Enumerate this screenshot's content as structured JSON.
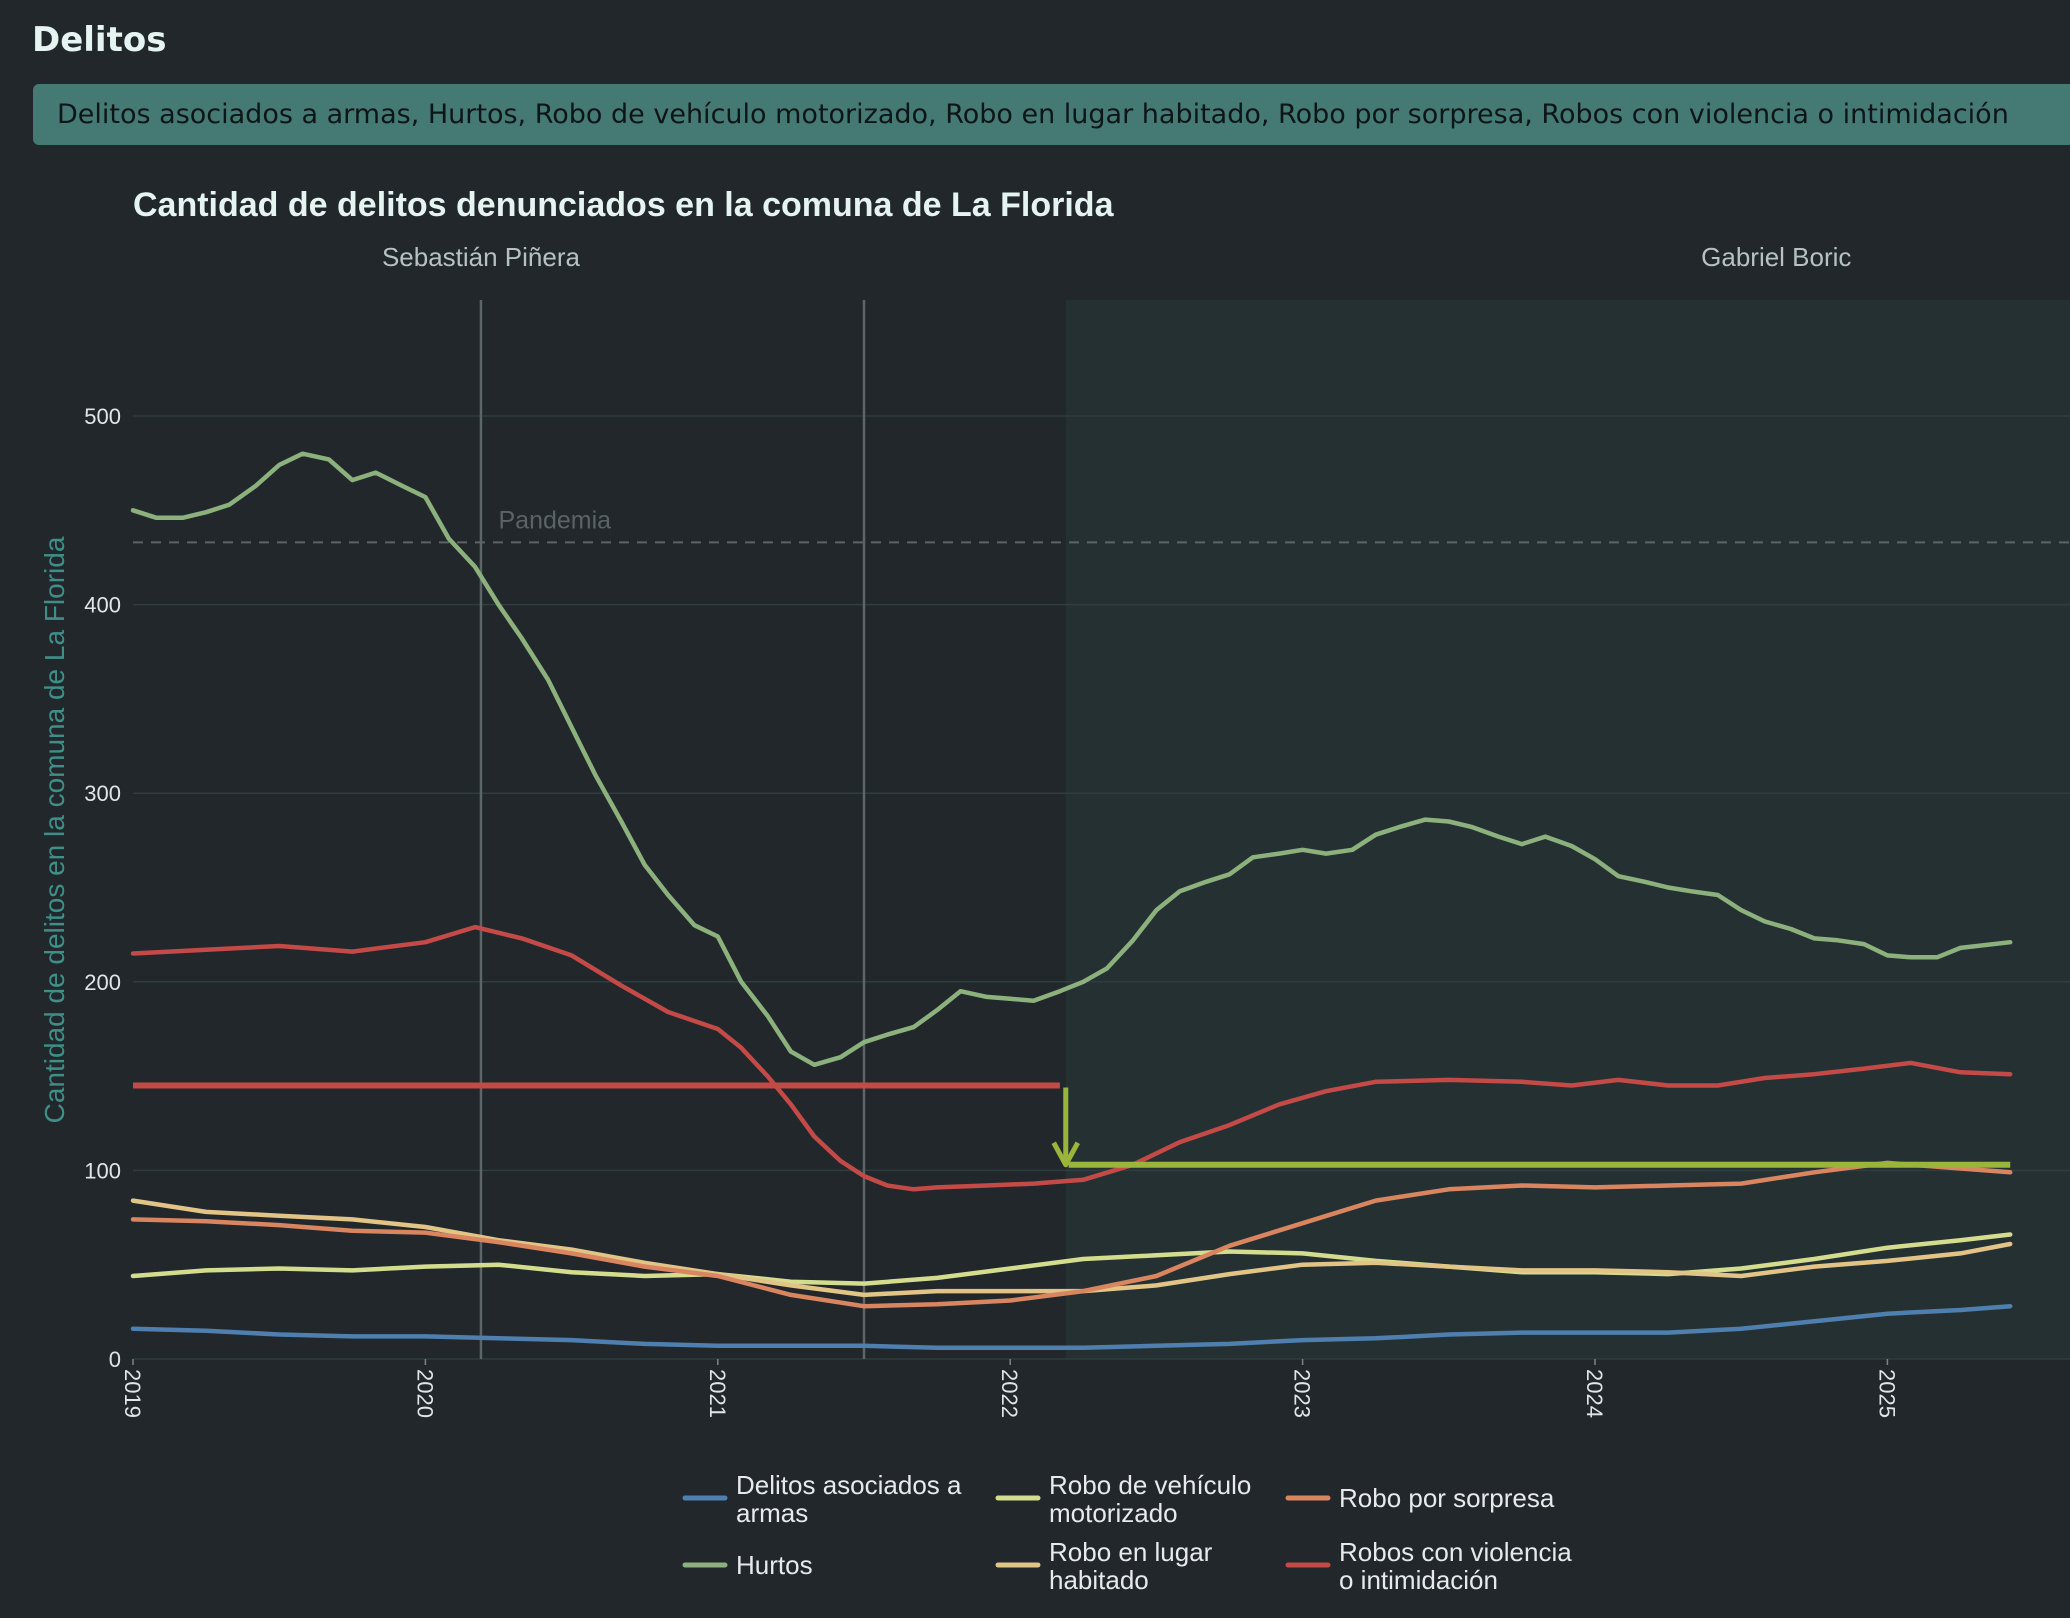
{
  "section_title": "Delitos",
  "filter_text": "Delitos asociados a armas, Hurtos, Robo de vehículo motorizado, Robo en lugar habitado, Robo por sorpresa, Robos con violencia o intimidación",
  "chart_data": {
    "type": "line",
    "title": "Cantidad de delitos denunciados en la comuna de La Florida",
    "ylabel": "Cantidad de delitos en la comuna de La Florida",
    "xlabel": "",
    "xlim": [
      2019.0,
      2026.25
    ],
    "ylim": [
      0,
      560
    ],
    "x_ticks": [
      "2019",
      "2020",
      "2021",
      "2022",
      "2023",
      "2024",
      "2025"
    ],
    "y_ticks": [
      0,
      100,
      200,
      300,
      400,
      500
    ],
    "grid": "horizontal",
    "legend_position": "bottom",
    "periods": [
      {
        "label": "Sebastián Piñera",
        "start": 2018.2,
        "end": 2022.19,
        "shaded": false
      },
      {
        "label": "Gabriel Boric",
        "start": 2022.19,
        "end": 2026.15,
        "shaded": true
      }
    ],
    "vertical_lines": [
      2020.19,
      2021.5
    ],
    "annotations": [
      {
        "label": "Pandemia",
        "type": "hline",
        "y": 433
      }
    ],
    "comparison": {
      "before": {
        "y": 145,
        "x_start": 2019.0,
        "x_end": 2022.17
      },
      "after": {
        "y": 103,
        "x_start": 2022.2,
        "x_end": 2025.42
      },
      "arrow_x": 2022.19
    },
    "series": [
      {
        "name": "Delitos asociados a armas",
        "color": "#4e7fae",
        "values": [
          [
            2019.0,
            16
          ],
          [
            2019.25,
            15
          ],
          [
            2019.5,
            13
          ],
          [
            2019.75,
            12
          ],
          [
            2020.0,
            12
          ],
          [
            2020.25,
            11
          ],
          [
            2020.5,
            10
          ],
          [
            2020.75,
            8
          ],
          [
            2021.0,
            7
          ],
          [
            2021.25,
            7
          ],
          [
            2021.5,
            7
          ],
          [
            2021.75,
            6
          ],
          [
            2022.0,
            6
          ],
          [
            2022.25,
            6
          ],
          [
            2022.5,
            7
          ],
          [
            2022.75,
            8
          ],
          [
            2023.0,
            10
          ],
          [
            2023.25,
            11
          ],
          [
            2023.5,
            13
          ],
          [
            2023.75,
            14
          ],
          [
            2024.0,
            14
          ],
          [
            2024.25,
            14
          ],
          [
            2024.5,
            16
          ],
          [
            2024.75,
            20
          ],
          [
            2025.0,
            24
          ],
          [
            2025.25,
            26
          ],
          [
            2025.42,
            28
          ]
        ]
      },
      {
        "name": "Hurtos",
        "color": "#8db17d",
        "values": [
          [
            2019.0,
            450
          ],
          [
            2019.08,
            446
          ],
          [
            2019.17,
            446
          ],
          [
            2019.25,
            449
          ],
          [
            2019.33,
            453
          ],
          [
            2019.42,
            463
          ],
          [
            2019.5,
            474
          ],
          [
            2019.58,
            480
          ],
          [
            2019.67,
            477
          ],
          [
            2019.75,
            466
          ],
          [
            2019.83,
            470
          ],
          [
            2019.92,
            463
          ],
          [
            2020.0,
            457
          ],
          [
            2020.08,
            435
          ],
          [
            2020.17,
            420
          ],
          [
            2020.25,
            400
          ],
          [
            2020.33,
            382
          ],
          [
            2020.42,
            360
          ],
          [
            2020.5,
            335
          ],
          [
            2020.58,
            310
          ],
          [
            2020.67,
            285
          ],
          [
            2020.75,
            262
          ],
          [
            2020.83,
            246
          ],
          [
            2020.92,
            230
          ],
          [
            2021.0,
            224
          ],
          [
            2021.08,
            200
          ],
          [
            2021.17,
            182
          ],
          [
            2021.25,
            163
          ],
          [
            2021.33,
            156
          ],
          [
            2021.42,
            160
          ],
          [
            2021.5,
            168
          ],
          [
            2021.58,
            172
          ],
          [
            2021.67,
            176
          ],
          [
            2021.75,
            185
          ],
          [
            2021.83,
            195
          ],
          [
            2021.92,
            192
          ],
          [
            2022.0,
            191
          ],
          [
            2022.08,
            190
          ],
          [
            2022.17,
            195
          ],
          [
            2022.25,
            200
          ],
          [
            2022.33,
            207
          ],
          [
            2022.42,
            222
          ],
          [
            2022.5,
            238
          ],
          [
            2022.58,
            248
          ],
          [
            2022.67,
            253
          ],
          [
            2022.75,
            257
          ],
          [
            2022.83,
            266
          ],
          [
            2022.92,
            268
          ],
          [
            2023.0,
            270
          ],
          [
            2023.08,
            268
          ],
          [
            2023.17,
            270
          ],
          [
            2023.25,
            278
          ],
          [
            2023.33,
            282
          ],
          [
            2023.42,
            286
          ],
          [
            2023.5,
            285
          ],
          [
            2023.58,
            282
          ],
          [
            2023.67,
            277
          ],
          [
            2023.75,
            273
          ],
          [
            2023.83,
            277
          ],
          [
            2023.92,
            272
          ],
          [
            2024.0,
            265
          ],
          [
            2024.08,
            256
          ],
          [
            2024.17,
            253
          ],
          [
            2024.25,
            250
          ],
          [
            2024.33,
            248
          ],
          [
            2024.42,
            246
          ],
          [
            2024.5,
            238
          ],
          [
            2024.58,
            232
          ],
          [
            2024.67,
            228
          ],
          [
            2024.75,
            223
          ],
          [
            2024.83,
            222
          ],
          [
            2024.92,
            220
          ],
          [
            2025.0,
            214
          ],
          [
            2025.08,
            213
          ],
          [
            2025.17,
            213
          ],
          [
            2025.25,
            218
          ],
          [
            2025.42,
            221
          ]
        ]
      },
      {
        "name": "Robo de vehículo motorizado",
        "color": "#d4dd8e",
        "values": [
          [
            2019.0,
            44
          ],
          [
            2019.25,
            47
          ],
          [
            2019.5,
            48
          ],
          [
            2019.75,
            47
          ],
          [
            2020.0,
            49
          ],
          [
            2020.25,
            50
          ],
          [
            2020.5,
            46
          ],
          [
            2020.75,
            44
          ],
          [
            2021.0,
            45
          ],
          [
            2021.25,
            41
          ],
          [
            2021.5,
            40
          ],
          [
            2021.75,
            43
          ],
          [
            2022.0,
            48
          ],
          [
            2022.25,
            53
          ],
          [
            2022.5,
            55
          ],
          [
            2022.75,
            57
          ],
          [
            2023.0,
            56
          ],
          [
            2023.25,
            52
          ],
          [
            2023.5,
            49
          ],
          [
            2023.75,
            46
          ],
          [
            2024.0,
            46
          ],
          [
            2024.25,
            45
          ],
          [
            2024.5,
            48
          ],
          [
            2024.75,
            53
          ],
          [
            2025.0,
            59
          ],
          [
            2025.25,
            63
          ],
          [
            2025.42,
            66
          ]
        ]
      },
      {
        "name": "Robo en lugar habitado",
        "color": "#e3c487",
        "values": [
          [
            2019.0,
            84
          ],
          [
            2019.25,
            78
          ],
          [
            2019.5,
            76
          ],
          [
            2019.75,
            74
          ],
          [
            2020.0,
            70
          ],
          [
            2020.25,
            63
          ],
          [
            2020.5,
            58
          ],
          [
            2020.75,
            51
          ],
          [
            2021.0,
            45
          ],
          [
            2021.25,
            39
          ],
          [
            2021.5,
            34
          ],
          [
            2021.75,
            36
          ],
          [
            2022.0,
            36
          ],
          [
            2022.25,
            36
          ],
          [
            2022.5,
            39
          ],
          [
            2022.75,
            45
          ],
          [
            2023.0,
            50
          ],
          [
            2023.25,
            51
          ],
          [
            2023.5,
            49
          ],
          [
            2023.75,
            47
          ],
          [
            2024.0,
            47
          ],
          [
            2024.25,
            46
          ],
          [
            2024.5,
            44
          ],
          [
            2024.75,
            49
          ],
          [
            2025.0,
            52
          ],
          [
            2025.25,
            56
          ],
          [
            2025.42,
            61
          ]
        ]
      },
      {
        "name": "Robo por sorpresa",
        "color": "#d9855f",
        "values": [
          [
            2019.0,
            74
          ],
          [
            2019.25,
            73
          ],
          [
            2019.5,
            71
          ],
          [
            2019.75,
            68
          ],
          [
            2020.0,
            67
          ],
          [
            2020.25,
            62
          ],
          [
            2020.5,
            56
          ],
          [
            2020.75,
            49
          ],
          [
            2021.0,
            44
          ],
          [
            2021.25,
            34
          ],
          [
            2021.5,
            28
          ],
          [
            2021.75,
            29
          ],
          [
            2022.0,
            31
          ],
          [
            2022.25,
            36
          ],
          [
            2022.5,
            44
          ],
          [
            2022.75,
            60
          ],
          [
            2023.0,
            72
          ],
          [
            2023.25,
            84
          ],
          [
            2023.5,
            90
          ],
          [
            2023.75,
            92
          ],
          [
            2024.0,
            91
          ],
          [
            2024.25,
            92
          ],
          [
            2024.5,
            93
          ],
          [
            2024.75,
            99
          ],
          [
            2025.0,
            104
          ],
          [
            2025.25,
            101
          ],
          [
            2025.42,
            99
          ]
        ]
      },
      {
        "name": "Robos con violencia o intimidación",
        "color": "#c34a47",
        "values": [
          [
            2019.0,
            215
          ],
          [
            2019.25,
            217
          ],
          [
            2019.5,
            219
          ],
          [
            2019.75,
            216
          ],
          [
            2020.0,
            221
          ],
          [
            2020.17,
            229
          ],
          [
            2020.33,
            223
          ],
          [
            2020.5,
            214
          ],
          [
            2020.67,
            198
          ],
          [
            2020.83,
            184
          ],
          [
            2021.0,
            175
          ],
          [
            2021.08,
            165
          ],
          [
            2021.17,
            150
          ],
          [
            2021.25,
            135
          ],
          [
            2021.33,
            118
          ],
          [
            2021.42,
            105
          ],
          [
            2021.5,
            97
          ],
          [
            2021.58,
            92
          ],
          [
            2021.67,
            90
          ],
          [
            2021.75,
            91
          ],
          [
            2021.92,
            92
          ],
          [
            2022.08,
            93
          ],
          [
            2022.25,
            95
          ],
          [
            2022.42,
            103
          ],
          [
            2022.58,
            115
          ],
          [
            2022.75,
            124
          ],
          [
            2022.92,
            135
          ],
          [
            2023.08,
            142
          ],
          [
            2023.25,
            147
          ],
          [
            2023.5,
            148
          ],
          [
            2023.75,
            147
          ],
          [
            2023.92,
            145
          ],
          [
            2024.08,
            148
          ],
          [
            2024.25,
            145
          ],
          [
            2024.42,
            145
          ],
          [
            2024.58,
            149
          ],
          [
            2024.75,
            151
          ],
          [
            2024.92,
            154
          ],
          [
            2025.08,
            157
          ],
          [
            2025.25,
            152
          ],
          [
            2025.42,
            151
          ]
        ]
      }
    ]
  }
}
